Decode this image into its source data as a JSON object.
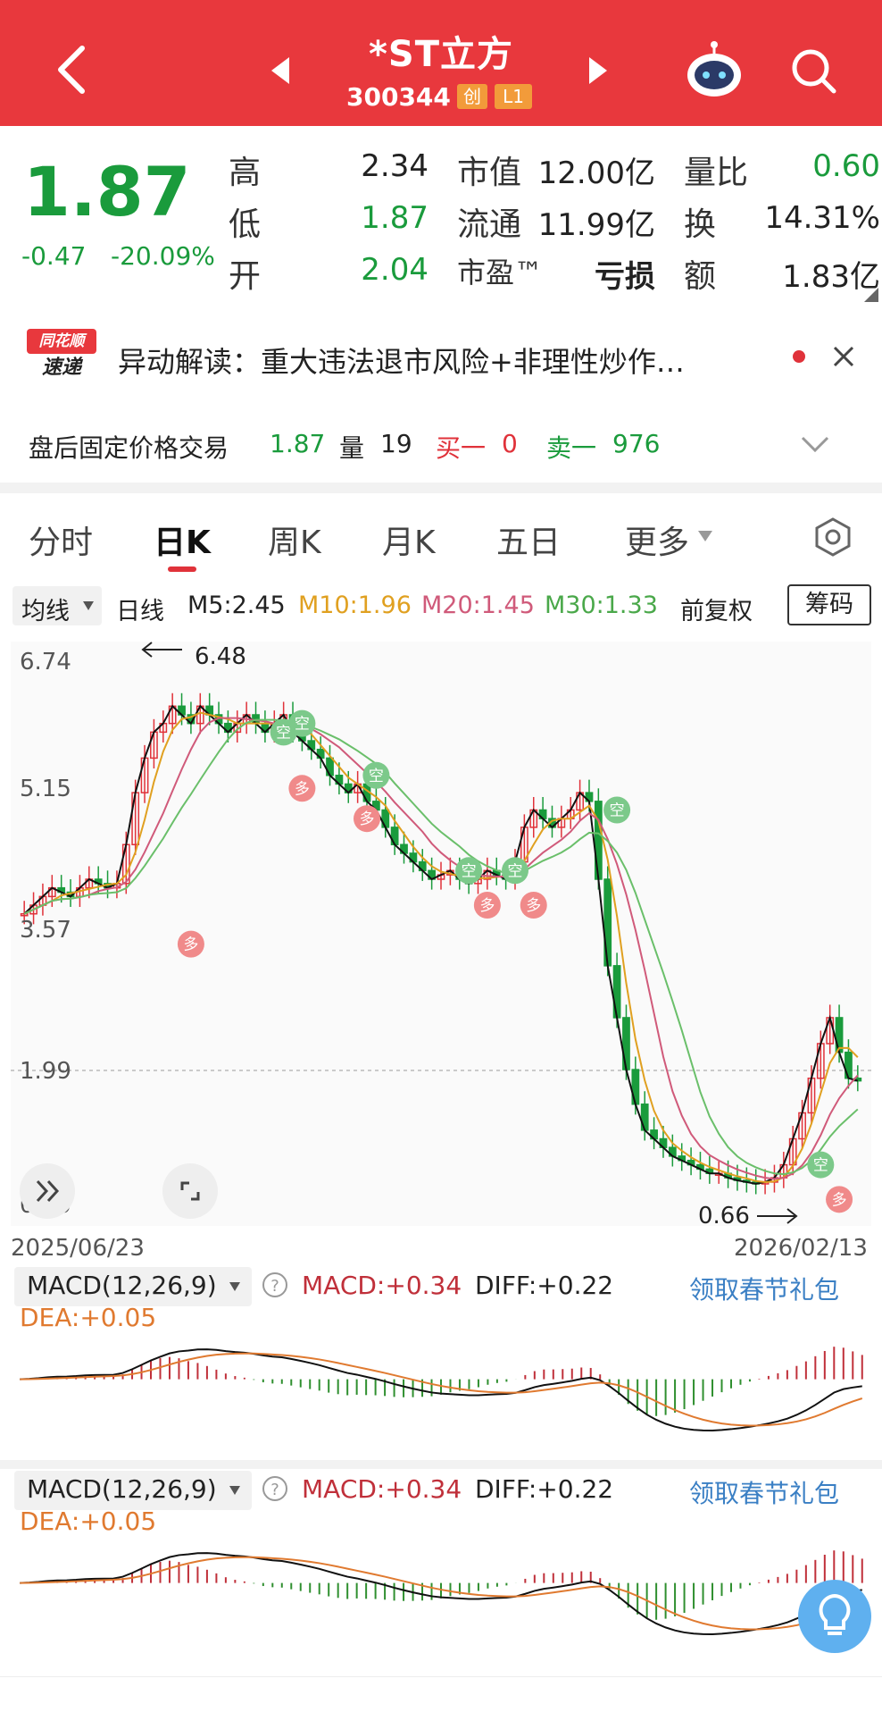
{
  "header": {
    "title": "*ST立方",
    "code": "300344",
    "badge_chuang": "创",
    "badge_level": "L1"
  },
  "quote": {
    "price": "1.87",
    "change": "-0.47",
    "change_pct": "-20.09%",
    "high_label": "高",
    "high": "2.34",
    "low_label": "低",
    "low": "1.87",
    "open_label": "开",
    "open": "2.04",
    "mktcap_label": "市值",
    "mktcap": "12.00亿",
    "float_label": "流通",
    "float": "11.99亿",
    "pe_label": "市盈™",
    "pe": "亏损",
    "volratio_label": "量比",
    "volratio": "0.60",
    "turnover_label": "换",
    "turnover": "14.31%",
    "amount_label": "额",
    "amount": "1.83亿"
  },
  "notice": {
    "logo_top": "同花顺",
    "logo_bottom": "速递",
    "text": "异动解读：重大违法退市风险+非理性炒作…"
  },
  "after_hours": {
    "label": "盘后固定价格交易",
    "price": "1.87",
    "vol_label": "量",
    "vol": "19",
    "buy_label": "买一",
    "buy": "0",
    "sell_label": "卖一",
    "sell": "976"
  },
  "tabs": [
    "分时",
    "日K",
    "周K",
    "月K",
    "五日",
    "更多"
  ],
  "ma": {
    "selector": "均线",
    "type": "日线",
    "m5": "M5:2.45",
    "m10": "M10:1.96",
    "m20": "M20:1.45",
    "m30": "M30:1.33",
    "adjust": "前复权",
    "chips_btn": "筹码"
  },
  "chart_data": {
    "type": "candlestick",
    "y_ticks": [
      "6.74",
      "5.15",
      "3.57",
      "1.99",
      "0.40"
    ],
    "x_start": "2025/06/23",
    "x_end": "2026/02/13",
    "max_label": "6.48",
    "min_label": "0.66",
    "close_series": [
      3.8,
      3.9,
      4.0,
      4.1,
      4.05,
      4.0,
      4.1,
      4.2,
      4.15,
      4.1,
      4.15,
      4.6,
      5.2,
      5.6,
      5.9,
      6.0,
      6.2,
      6.1,
      6.0,
      6.2,
      6.1,
      6.0,
      5.9,
      6.0,
      6.1,
      6.0,
      5.9,
      6.0,
      6.1,
      5.9,
      5.8,
      5.7,
      5.6,
      5.4,
      5.3,
      5.2,
      5.3,
      5.1,
      5.0,
      4.8,
      4.6,
      4.5,
      4.4,
      4.3,
      4.2,
      4.25,
      4.3,
      4.2,
      4.15,
      4.2,
      4.3,
      4.25,
      4.2,
      4.4,
      4.8,
      5.0,
      4.9,
      4.8,
      4.9,
      5.0,
      5.2,
      5.1,
      4.2,
      3.2,
      2.6,
      2.0,
      1.6,
      1.3,
      1.2,
      1.1,
      1.0,
      0.95,
      0.9,
      0.85,
      0.8,
      0.8,
      0.75,
      0.72,
      0.7,
      0.68,
      0.7,
      0.75,
      0.9,
      1.2,
      1.5,
      1.9,
      2.3,
      2.6,
      2.2,
      1.9,
      1.87
    ]
  },
  "macd": {
    "title": "MACD(12,26,9)",
    "macd": "MACD:+0.34",
    "diff": "DIFF:+0.22",
    "dea": "DEA:+0.05",
    "promo": "领取春节礼包"
  },
  "chips_labels": {
    "kong": "空",
    "duo": "多"
  }
}
